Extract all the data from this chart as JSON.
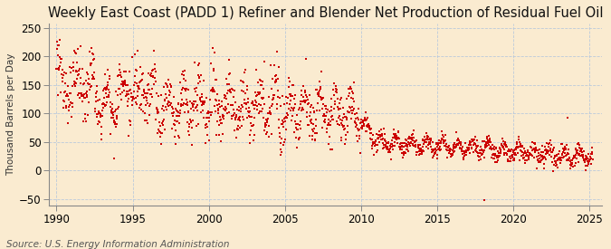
{
  "title": "Weekly East Coast (PADD 1) Refiner and Blender Net Production of Residual Fuel Oil",
  "ylabel": "Thousand Barrels per Day",
  "source": "Source: U.S. Energy Information Administration",
  "background_color": "#faebd0",
  "plot_bg_color": "#faebd0",
  "dot_color": "#cc0000",
  "dot_size": 2.5,
  "xlim": [
    1989.5,
    2025.8
  ],
  "ylim": [
    -62,
    258
  ],
  "yticks": [
    -50,
    0,
    50,
    100,
    150,
    200,
    250
  ],
  "xticks": [
    1990,
    1995,
    2000,
    2005,
    2010,
    2015,
    2020,
    2025
  ],
  "title_fontsize": 10.5,
  "ylabel_fontsize": 7.5,
  "source_fontsize": 7.5,
  "tick_fontsize": 8.5,
  "grid_color": "#b0c4de",
  "grid_linestyle": "--",
  "grid_linewidth": 0.6
}
